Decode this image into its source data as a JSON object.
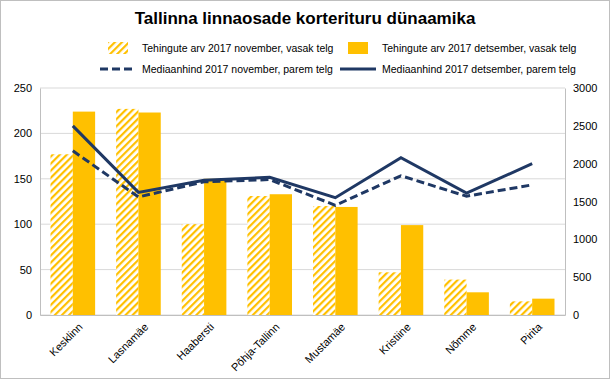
{
  "chart_data": {
    "type": "bar",
    "title": "Tallinna linnaosade korterituru dünaamika",
    "categories": [
      "Kesklinn",
      "Lasnamäe",
      "Haabersti",
      "Põhja-Tallinn",
      "Mustamäe",
      "Kristiine",
      "Nõmme",
      "Pirita"
    ],
    "series": [
      {
        "name": "Tehingute arv 2017 november, vasak telg",
        "type": "bar",
        "color": "#FFC000",
        "line_style": "hatched",
        "values": [
          177,
          227,
          100,
          131,
          120,
          47,
          39,
          15
        ]
      },
      {
        "name": "Tehingute arv 2017 detsember, vasak telg",
        "type": "bar",
        "color": "#FFC000",
        "line_style": "solid",
        "values": [
          224,
          223,
          150,
          133,
          119,
          99,
          25,
          18
        ]
      },
      {
        "name": "Mediaanhind 2017 november, parem telg",
        "type": "line",
        "color": "#1F3864",
        "line_style": "dashed",
        "axis": "y2",
        "values": [
          2170,
          1560,
          1760,
          1790,
          1450,
          1840,
          1570,
          1720
        ]
      },
      {
        "name": "Mediaanhind 2017 detsember, parem telg",
        "type": "line",
        "color": "#1F3864",
        "line_style": "solid",
        "axis": "y2",
        "values": [
          2500,
          1620,
          1780,
          1820,
          1550,
          2080,
          1610,
          2000
        ]
      }
    ],
    "ylim": [
      0,
      250
    ],
    "yticks": [
      0,
      50,
      100,
      150,
      200,
      250
    ],
    "y2lim": [
      0,
      3000
    ],
    "y2ticks": [
      0,
      500,
      1000,
      1500,
      2000,
      2500,
      3000
    ],
    "grid": true,
    "legend": "top"
  }
}
